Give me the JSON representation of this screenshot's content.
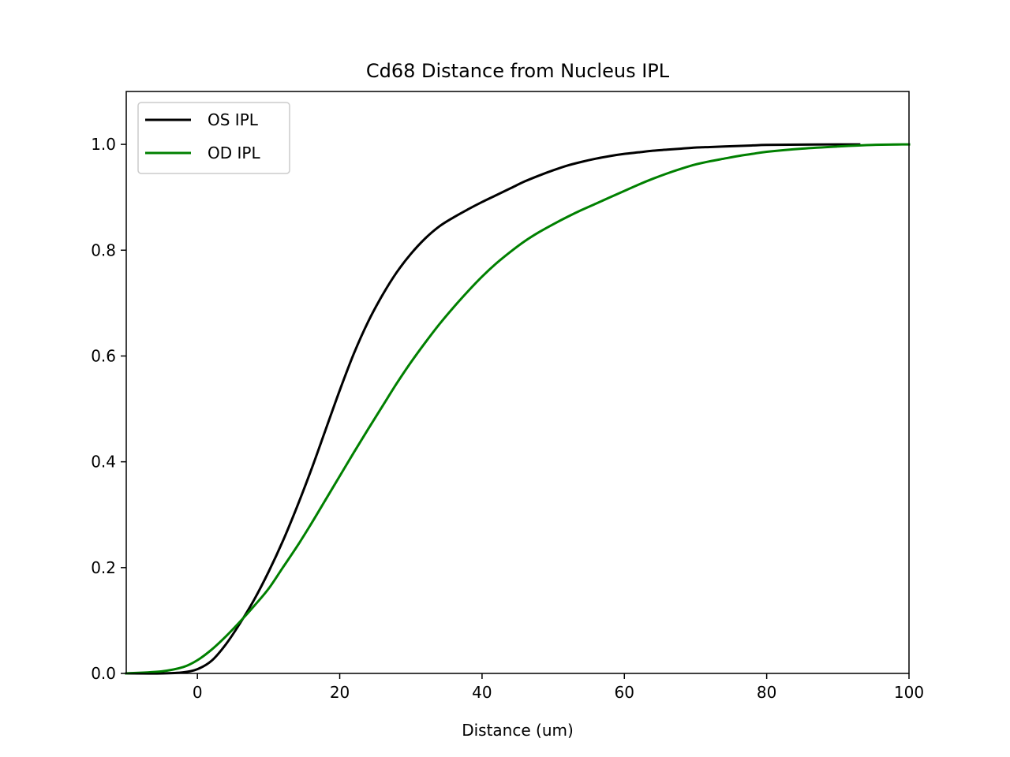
{
  "chart_data": {
    "type": "line",
    "title": "Cd68 Distance from Nucleus IPL",
    "xlabel": "Distance (um)",
    "ylabel": "",
    "xlim": [
      -10,
      100
    ],
    "ylim": [
      0,
      1.1
    ],
    "xticks": [
      0,
      20,
      40,
      60,
      80,
      100
    ],
    "xtick_labels": [
      "0",
      "20",
      "40",
      "60",
      "80",
      "100"
    ],
    "yticks": [
      0.0,
      0.2,
      0.4,
      0.6,
      0.8,
      1.0
    ],
    "ytick_labels": [
      "0.0",
      "0.2",
      "0.4",
      "0.6",
      "0.8",
      "1.0"
    ],
    "grid": false,
    "legend_position": "top-left",
    "series": [
      {
        "name": "OS IPL",
        "color": "#000000",
        "x": [
          -10,
          -5,
          -2,
          0,
          2,
          4,
          6,
          8,
          10,
          12,
          14,
          16,
          18,
          20,
          22,
          24,
          26,
          28,
          30,
          32,
          34,
          36,
          38,
          40,
          42,
          44,
          46,
          48,
          50,
          52,
          54,
          56,
          58,
          60,
          62,
          64,
          66,
          68,
          70,
          72,
          74,
          76,
          78,
          80,
          85,
          90,
          93
        ],
        "y": [
          0.0,
          0.0,
          0.002,
          0.008,
          0.024,
          0.055,
          0.095,
          0.14,
          0.192,
          0.25,
          0.315,
          0.385,
          0.46,
          0.535,
          0.605,
          0.665,
          0.715,
          0.758,
          0.793,
          0.822,
          0.845,
          0.862,
          0.877,
          0.891,
          0.904,
          0.917,
          0.93,
          0.941,
          0.951,
          0.96,
          0.967,
          0.973,
          0.978,
          0.982,
          0.985,
          0.988,
          0.99,
          0.992,
          0.994,
          0.995,
          0.996,
          0.997,
          0.998,
          0.999,
          0.9995,
          1.0,
          1.0
        ]
      },
      {
        "name": "OD IPL",
        "color": "#008000",
        "x": [
          -10,
          -5,
          -2,
          0,
          2,
          4,
          6,
          8,
          10,
          12,
          14,
          16,
          18,
          20,
          22,
          24,
          26,
          28,
          30,
          32,
          34,
          36,
          38,
          40,
          42,
          44,
          46,
          48,
          50,
          52,
          54,
          56,
          58,
          60,
          62,
          64,
          66,
          68,
          70,
          72,
          74,
          76,
          78,
          80,
          85,
          90,
          95,
          100
        ],
        "y": [
          0.0,
          0.004,
          0.012,
          0.025,
          0.045,
          0.07,
          0.098,
          0.128,
          0.16,
          0.2,
          0.24,
          0.283,
          0.328,
          0.373,
          0.418,
          0.462,
          0.505,
          0.548,
          0.588,
          0.625,
          0.66,
          0.692,
          0.722,
          0.75,
          0.775,
          0.797,
          0.817,
          0.834,
          0.849,
          0.863,
          0.876,
          0.888,
          0.9,
          0.912,
          0.924,
          0.935,
          0.945,
          0.954,
          0.962,
          0.968,
          0.973,
          0.978,
          0.982,
          0.986,
          0.992,
          0.996,
          0.999,
          1.0
        ]
      }
    ]
  }
}
